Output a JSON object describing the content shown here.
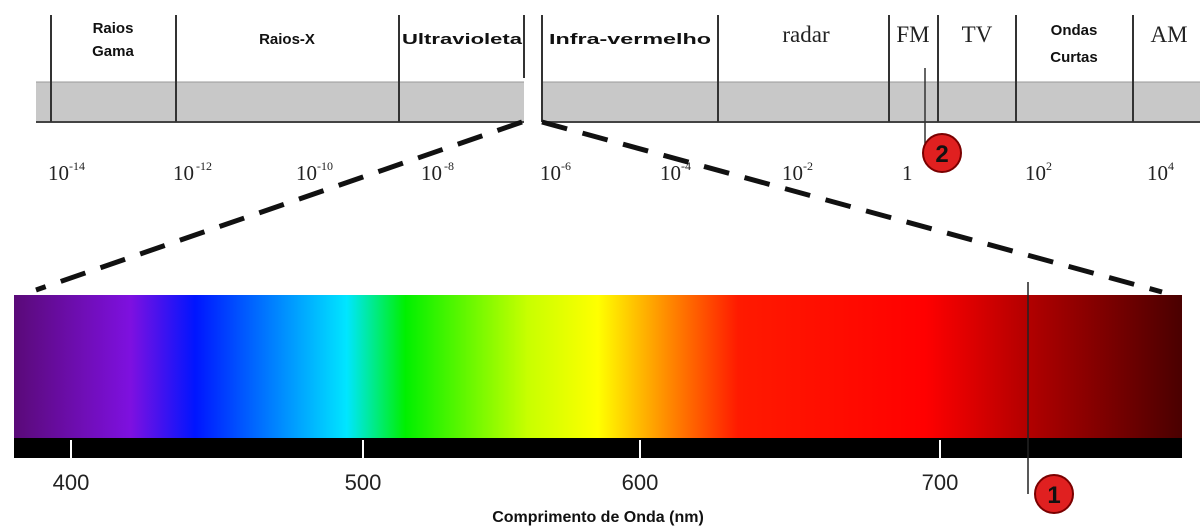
{
  "spectrum": {
    "bands": [
      {
        "label": "Raios",
        "label2": "Gama",
        "style": "bold"
      },
      {
        "label": "Raios-X",
        "label2": "",
        "style": "bold"
      },
      {
        "label": "Ultravioleta",
        "label2": "",
        "style": "bold"
      },
      {
        "label": "Infra-vermelho",
        "label2": "",
        "style": "bold"
      },
      {
        "label": "radar",
        "label2": "",
        "style": "serif"
      },
      {
        "label": "FM",
        "label2": "",
        "style": "serif"
      },
      {
        "label": "TV",
        "label2": "",
        "style": "serif"
      },
      {
        "label": "Ondas",
        "label2": "Curtas",
        "style": "bold"
      },
      {
        "label": "AM",
        "label2": "",
        "style": "serif"
      }
    ],
    "ticks": [
      {
        "base": "10",
        "exp": "-14"
      },
      {
        "base": "10",
        "exp": "-12"
      },
      {
        "base": "10",
        "exp": "-10"
      },
      {
        "base": "10",
        "exp": "-8"
      },
      {
        "base": "10",
        "exp": "-6"
      },
      {
        "base": "10",
        "exp": "-4"
      },
      {
        "base": "10",
        "exp": "-2"
      },
      {
        "base": "1",
        "exp": ""
      },
      {
        "base": "10",
        "exp": "2"
      },
      {
        "base": "10",
        "exp": "4"
      }
    ]
  },
  "visible": {
    "labels": [
      "400",
      "500",
      "600",
      "700"
    ],
    "axis_title": "Comprimento de Onda (nm)",
    "gradient_colors": [
      "#5a0a78",
      "#7e10e0",
      "#0015ff",
      "#00e6ff",
      "#00f000",
      "#c8ff00",
      "#ffff00",
      "#ff8a00",
      "#ff1a00",
      "#ff0000",
      "#a80000",
      "#4a0000"
    ]
  },
  "markers": [
    {
      "label": "1",
      "color": "#e02020"
    },
    {
      "label": "2",
      "color": "#e02020"
    }
  ],
  "colors": {
    "band_gray": "#c8c8c8",
    "dash": "#111111",
    "axis_bar": "#000000"
  }
}
